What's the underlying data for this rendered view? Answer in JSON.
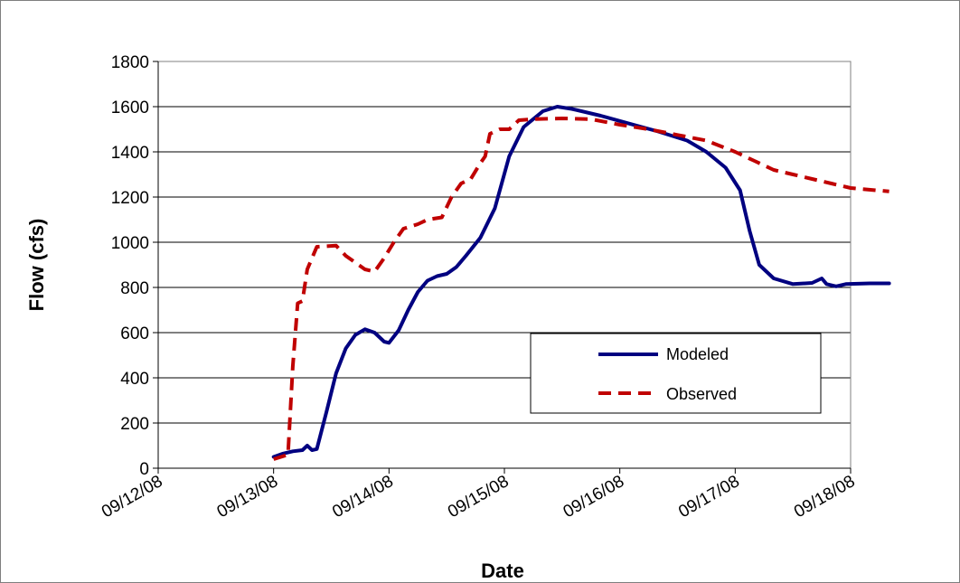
{
  "chart_data": {
    "type": "line",
    "xlabel": "Date",
    "ylabel": "Flow (cfs)",
    "x_ticks": [
      "09/12/08",
      "09/13/08",
      "09/14/08",
      "09/15/08",
      "09/16/08",
      "09/17/08",
      "09/18/08"
    ],
    "y_ticks": [
      0,
      200,
      400,
      600,
      800,
      1000,
      1200,
      1400,
      1600,
      1800
    ],
    "xlim": [
      "09/12/08",
      "09/18/08"
    ],
    "ylim": [
      0,
      1800
    ],
    "grid": "horizontal",
    "legend_position": "lower-right",
    "series": [
      {
        "name": "Modeled",
        "color": "#000080",
        "style": "solid",
        "points": [
          [
            "09/13/08 00:00",
            50
          ],
          [
            "09/13/08 02:00",
            65
          ],
          [
            "09/13/08 04:00",
            75
          ],
          [
            "09/13/08 06:00",
            80
          ],
          [
            "09/13/08 07:00",
            100
          ],
          [
            "09/13/08 08:00",
            80
          ],
          [
            "09/13/08 09:00",
            85
          ],
          [
            "09/13/08 11:00",
            250
          ],
          [
            "09/13/08 13:00",
            420
          ],
          [
            "09/13/08 15:00",
            530
          ],
          [
            "09/13/08 17:00",
            590
          ],
          [
            "09/13/08 19:00",
            615
          ],
          [
            "09/13/08 21:00",
            600
          ],
          [
            "09/13/08 23:00",
            560
          ],
          [
            "09/14/08 00:00",
            555
          ],
          [
            "09/14/08 02:00",
            610
          ],
          [
            "09/14/08 04:00",
            700
          ],
          [
            "09/14/08 06:00",
            780
          ],
          [
            "09/14/08 08:00",
            830
          ],
          [
            "09/14/08 10:00",
            850
          ],
          [
            "09/14/08 12:00",
            860
          ],
          [
            "09/14/08 14:00",
            890
          ],
          [
            "09/14/08 16:00",
            940
          ],
          [
            "09/14/08 19:00",
            1020
          ],
          [
            "09/14/08 22:00",
            1150
          ],
          [
            "09/15/08 01:00",
            1380
          ],
          [
            "09/15/08 04:00",
            1510
          ],
          [
            "09/15/08 08:00",
            1580
          ],
          [
            "09/15/08 11:00",
            1600
          ],
          [
            "09/15/08 14:00",
            1590
          ],
          [
            "09/15/08 20:00",
            1560
          ],
          [
            "09/16/08 02:00",
            1525
          ],
          [
            "09/16/08 08:00",
            1490
          ],
          [
            "09/16/08 14:00",
            1450
          ],
          [
            "09/16/08 18:00",
            1400
          ],
          [
            "09/16/08 22:00",
            1330
          ],
          [
            "09/17/08 01:00",
            1230
          ],
          [
            "09/17/08 03:00",
            1050
          ],
          [
            "09/17/08 05:00",
            900
          ],
          [
            "09/17/08 08:00",
            840
          ],
          [
            "09/17/08 12:00",
            815
          ],
          [
            "09/17/08 16:00",
            820
          ],
          [
            "09/17/08 18:00",
            840
          ],
          [
            "09/17/08 19:00",
            815
          ],
          [
            "09/17/08 21:00",
            805
          ],
          [
            "09/17/08 23:00",
            815
          ],
          [
            "09/18/08 04:00",
            818
          ],
          [
            "09/18/08 08:00",
            818
          ]
        ]
      },
      {
        "name": "Observed",
        "color": "#c00000",
        "style": "dashed",
        "points": [
          [
            "09/13/08 00:00",
            40
          ],
          [
            "09/13/08 03:00",
            60
          ],
          [
            "09/13/08 04:00",
            450
          ],
          [
            "09/13/08 05:00",
            730
          ],
          [
            "09/13/08 06:00",
            740
          ],
          [
            "09/13/08 07:00",
            880
          ],
          [
            "09/13/08 09:00",
            980
          ],
          [
            "09/13/08 13:00",
            985
          ],
          [
            "09/13/08 15:00",
            940
          ],
          [
            "09/13/08 17:00",
            910
          ],
          [
            "09/13/08 19:00",
            880
          ],
          [
            "09/13/08 21:00",
            870
          ],
          [
            "09/13/08 23:00",
            930
          ],
          [
            "09/14/08 01:00",
            1000
          ],
          [
            "09/14/08 03:00",
            1060
          ],
          [
            "09/14/08 06:00",
            1080
          ],
          [
            "09/14/08 08:00",
            1100
          ],
          [
            "09/14/08 11:00",
            1110
          ],
          [
            "09/14/08 13:00",
            1200
          ],
          [
            "09/14/08 15:00",
            1260
          ],
          [
            "09/14/08 17:00",
            1280
          ],
          [
            "09/14/08 19:00",
            1350
          ],
          [
            "09/14/08 20:00",
            1380
          ],
          [
            "09/14/08 21:00",
            1480
          ],
          [
            "09/14/08 23:00",
            1500
          ],
          [
            "09/15/08 01:00",
            1500
          ],
          [
            "09/15/08 03:00",
            1540
          ],
          [
            "09/15/08 06:00",
            1545
          ],
          [
            "09/15/08 12:00",
            1548
          ],
          [
            "09/15/08 18:00",
            1545
          ],
          [
            "09/16/08 00:00",
            1520
          ],
          [
            "09/16/08 06:00",
            1500
          ],
          [
            "09/16/08 12:00",
            1475
          ],
          [
            "09/16/08 18:00",
            1450
          ],
          [
            "09/17/08 00:00",
            1400
          ],
          [
            "09/17/08 04:00",
            1360
          ],
          [
            "09/17/08 08:00",
            1320
          ],
          [
            "09/17/08 12:00",
            1300
          ],
          [
            "09/17/08 16:00",
            1280
          ],
          [
            "09/17/08 20:00",
            1260
          ],
          [
            "09/18/08 00:00",
            1240
          ],
          [
            "09/18/08 08:00",
            1225
          ]
        ]
      }
    ]
  }
}
